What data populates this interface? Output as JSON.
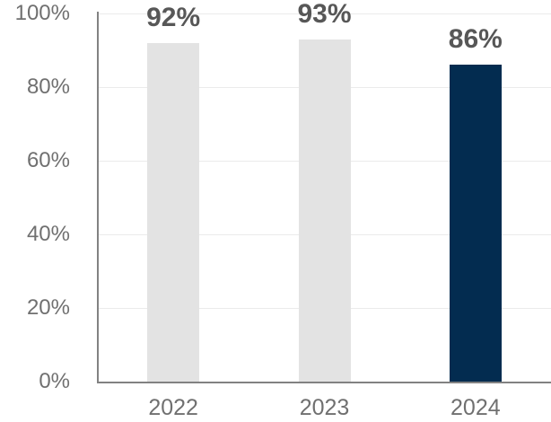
{
  "colors": {
    "bar_default": "#e3e3e3",
    "bar_highlight": "#032c50",
    "gridline": "#ebebeb",
    "axis_line": "#828282",
    "axis_label_text": "#707070",
    "data_label_text": "#575757",
    "background": "#ffffff"
  },
  "chart_data": {
    "type": "bar",
    "title": "",
    "xlabel": "",
    "ylabel": "",
    "categories": [
      "2022",
      "2023",
      "2024"
    ],
    "values": [
      92,
      93,
      86
    ],
    "data_labels": [
      "92%",
      "93%",
      "86%"
    ],
    "bar_colors": [
      "#e3e3e3",
      "#e3e3e3",
      "#032c50"
    ],
    "ylim": [
      0,
      100
    ],
    "yticks": [
      0,
      20,
      40,
      60,
      80,
      100
    ],
    "ytick_labels": [
      "0%",
      "20%",
      "40%",
      "60%",
      "80%",
      "100%"
    ],
    "grid": true,
    "legend": "none"
  }
}
